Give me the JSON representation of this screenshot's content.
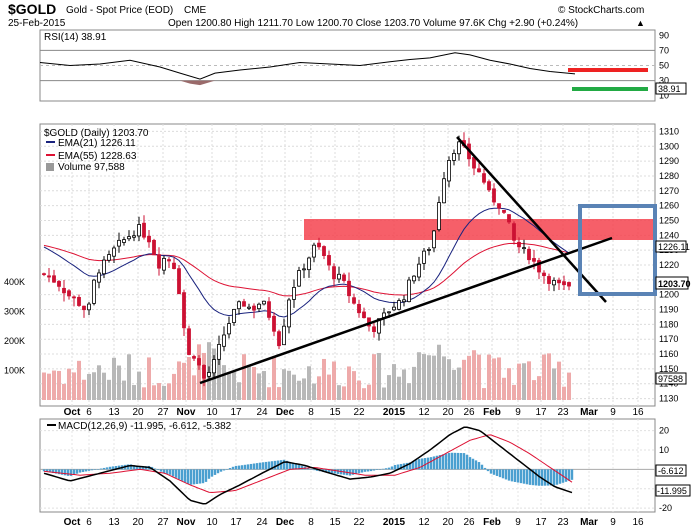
{
  "header": {
    "symbol": "$GOLD",
    "name": "Gold - Spot Price (EOD)",
    "exchange": "CME",
    "brand": "© StockCharts.com",
    "date": "25-Feb-2015",
    "ohlc": "Open 1200.80  High 1211.70  Low 1200.70  Close 1203.70  Volume 97.6K  Chg +2.90 (+0.24%)",
    "chg_arrow": "▲"
  },
  "colors": {
    "up": "#000000",
    "down": "#cc1133",
    "ema21": "#1a237e",
    "ema55": "#dd1133",
    "vol_up": "#b8b8b8",
    "vol_down": "#eeaaaa",
    "resist": "#f4434f",
    "box": "#5a83b5",
    "rsi_red": "#ee2222",
    "rsi_green": "#22aa44",
    "macd_hist": "#4a9fd0",
    "grid": "#c8c8c8"
  },
  "rsi": {
    "label": "RSI(14) 38.91",
    "value": 38.91,
    "value_label": "38.91",
    "ticks": [
      "90",
      "70",
      "50",
      "30",
      "10"
    ],
    "tick_values": [
      90,
      70,
      50,
      30,
      10
    ]
  },
  "main": {
    "title": "$GOLD (Daily) 1203.70",
    "legend": [
      {
        "name": "EMA(21) 1226.11",
        "color": "#1a237e"
      },
      {
        "name": "EMA(55) 1228.63",
        "color": "#dd1133"
      },
      {
        "name": "Volume 97,588",
        "color": "#666666"
      }
    ],
    "ylim": [
      1125,
      1315
    ],
    "ticks": [
      1310,
      1300,
      1290,
      1280,
      1270,
      1260,
      1250,
      1240,
      1230,
      1220,
      1210,
      1200,
      1190,
      1180,
      1170,
      1160,
      1150,
      1140,
      1130
    ],
    "vol_ticks": [
      "400K",
      "300K",
      "200K",
      "100K"
    ],
    "vol_tick_values": [
      400000,
      300000,
      200000,
      100000
    ],
    "tag_ema": "1226.11",
    "tag_close": "1203.70",
    "tag_vol": "97588"
  },
  "macd": {
    "label": "MACD(12,26,9) -11.995, -6.612, -5.382",
    "ticks": [
      "20",
      "10",
      "0",
      "-10",
      "-20"
    ],
    "tick_values": [
      20,
      10,
      0,
      -10,
      -20
    ],
    "tag_signal": "-6.612",
    "tag_macd": "-11.995",
    "ylim": [
      -22,
      26
    ]
  },
  "x_axis": {
    "labels": [
      "Oct",
      "6",
      "13",
      "20",
      "27",
      "Nov",
      "10",
      "17",
      "24",
      "Dec",
      "8",
      "15",
      "22",
      "2015",
      "12",
      "20",
      "26",
      "Feb",
      "9",
      "17",
      "23",
      "Mar",
      "9",
      "16"
    ],
    "bold": [
      true,
      false,
      false,
      false,
      false,
      true,
      false,
      false,
      false,
      true,
      false,
      false,
      false,
      true,
      false,
      false,
      false,
      true,
      false,
      false,
      false,
      true,
      false,
      false
    ]
  },
  "chart_data": {
    "type": "candlestick",
    "title": "$GOLD (Daily) 1203.70",
    "date_range": [
      "2014-09-29",
      "2015-02-25"
    ],
    "key_points": [
      {
        "date": "2014-09-29",
        "close": 1215
      },
      {
        "date": "2014-10-06",
        "close": 1190
      },
      {
        "date": "2014-10-14",
        "close": 1230
      },
      {
        "date": "2014-10-21",
        "close": 1246
      },
      {
        "date": "2014-10-27",
        "close": 1226
      },
      {
        "date": "2014-11-03",
        "close": 1165
      },
      {
        "date": "2014-11-07",
        "close": 1140
      },
      {
        "date": "2014-11-14",
        "close": 1186
      },
      {
        "date": "2014-11-20",
        "close": 1193
      },
      {
        "date": "2014-11-28",
        "close": 1167
      },
      {
        "date": "2014-12-01",
        "close": 1215
      },
      {
        "date": "2014-12-08",
        "close": 1232
      },
      {
        "date": "2014-12-15",
        "close": 1196
      },
      {
        "date": "2014-12-22",
        "close": 1178
      },
      {
        "date": "2015-01-02",
        "close": 1190
      },
      {
        "date": "2015-01-12",
        "close": 1233
      },
      {
        "date": "2015-01-20",
        "close": 1293
      },
      {
        "date": "2015-01-22",
        "close": 1301
      },
      {
        "date": "2015-01-26",
        "close": 1288
      },
      {
        "date": "2015-02-02",
        "close": 1273
      },
      {
        "date": "2015-02-06",
        "close": 1236
      },
      {
        "date": "2015-02-12",
        "close": 1222
      },
      {
        "date": "2015-02-18",
        "close": 1211
      },
      {
        "date": "2015-02-25",
        "close": 1203.7
      }
    ],
    "ema21_last": 1226.11,
    "ema55_last": 1228.63,
    "resistance_zone": [
      1232,
      1245
    ],
    "rsi_last": 38.91,
    "macd_last": {
      "macd": -11.995,
      "signal": -6.612,
      "histogram": -5.382
    },
    "annotations": [
      "horizontal resistance zone 1232-1245",
      "rising support trendline from Nov low",
      "falling trendline from Jan high",
      "target box Mar"
    ]
  }
}
